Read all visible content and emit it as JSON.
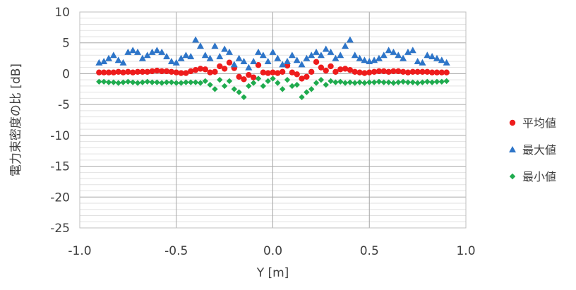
{
  "chart_data": {
    "type": "scatter",
    "xlabel": "Y [m]",
    "ylabel": "電力束密度の比 [dB]",
    "xlim": [
      -1.0,
      1.0
    ],
    "ylim": [
      -25,
      10
    ],
    "x_ticks": [
      "-1.0",
      "-0.5",
      "0.0",
      "0.5",
      "1.0"
    ],
    "y_ticks": [
      "10",
      "5",
      "0",
      "-5",
      "-10",
      "-15",
      "-20",
      "-25"
    ],
    "x_major": 0.5,
    "y_major": 5,
    "y_minor": 1,
    "legend_position": "right",
    "x": [
      -0.9,
      -0.875,
      -0.85,
      -0.825,
      -0.8,
      -0.775,
      -0.75,
      -0.725,
      -0.7,
      -0.675,
      -0.65,
      -0.625,
      -0.6,
      -0.575,
      -0.55,
      -0.525,
      -0.5,
      -0.475,
      -0.45,
      -0.425,
      -0.4,
      -0.375,
      -0.35,
      -0.325,
      -0.3,
      -0.275,
      -0.25,
      -0.225,
      -0.2,
      -0.175,
      -0.15,
      -0.125,
      -0.1,
      -0.075,
      -0.05,
      -0.025,
      0.0,
      0.025,
      0.05,
      0.075,
      0.1,
      0.125,
      0.15,
      0.175,
      0.2,
      0.225,
      0.25,
      0.275,
      0.3,
      0.325,
      0.35,
      0.375,
      0.4,
      0.425,
      0.45,
      0.475,
      0.5,
      0.525,
      0.55,
      0.575,
      0.6,
      0.625,
      0.65,
      0.675,
      0.7,
      0.725,
      0.75,
      0.775,
      0.8,
      0.825,
      0.85,
      0.875,
      0.9
    ],
    "series": [
      {
        "name": "平均値",
        "color": "#ee1c1c",
        "marker": "circle",
        "values": [
          0.2,
          0.2,
          0.2,
          0.2,
          0.3,
          0.2,
          0.3,
          0.2,
          0.3,
          0.3,
          0.3,
          0.4,
          0.5,
          0.4,
          0.4,
          0.3,
          0.2,
          0.1,
          0.1,
          0.4,
          0.6,
          0.8,
          0.7,
          0.2,
          0.3,
          1.2,
          0.8,
          1.8,
          0.9,
          -0.5,
          -0.9,
          -0.2,
          -0.6,
          1.4,
          0.2,
          0.1,
          0.2,
          0.1,
          0.3,
          1.3,
          0.2,
          -0.1,
          -0.8,
          -0.5,
          0.3,
          1.9,
          1.0,
          0.5,
          1.2,
          0.3,
          0.7,
          0.8,
          0.6,
          0.3,
          0.2,
          0.1,
          0.2,
          0.3,
          0.4,
          0.4,
          0.3,
          0.4,
          0.4,
          0.3,
          0.2,
          0.3,
          0.3,
          0.3,
          0.3,
          0.2,
          0.2,
          0.2,
          0.2
        ]
      },
      {
        "name": "最大値",
        "color": "#2e75c8",
        "marker": "triangle",
        "values": [
          1.8,
          2.0,
          2.5,
          3.0,
          2.2,
          1.8,
          3.5,
          3.8,
          3.5,
          2.5,
          3.0,
          3.5,
          3.8,
          3.5,
          2.8,
          2.0,
          1.8,
          2.5,
          3.0,
          2.8,
          5.5,
          4.5,
          3.0,
          2.5,
          4.5,
          2.8,
          4.0,
          3.5,
          1.5,
          2.5,
          2.0,
          1.0,
          2.0,
          3.5,
          3.0,
          2.0,
          3.5,
          2.5,
          1.5,
          2.0,
          3.0,
          2.2,
          1.5,
          2.5,
          3.0,
          3.5,
          3.0,
          4.0,
          3.5,
          2.5,
          3.0,
          4.5,
          5.5,
          3.0,
          2.5,
          2.2,
          2.0,
          2.2,
          2.5,
          3.0,
          3.8,
          3.5,
          3.0,
          2.5,
          3.5,
          3.8,
          2.0,
          1.8,
          3.0,
          2.8,
          2.5,
          2.2,
          1.8
        ]
      },
      {
        "name": "最小値",
        "color": "#1fab4e",
        "marker": "diamond",
        "values": [
          -1.3,
          -1.3,
          -1.4,
          -1.4,
          -1.5,
          -1.4,
          -1.3,
          -1.4,
          -1.5,
          -1.4,
          -1.3,
          -1.4,
          -1.4,
          -1.5,
          -1.4,
          -1.4,
          -1.5,
          -1.5,
          -1.4,
          -1.4,
          -1.4,
          -1.5,
          -1.2,
          -1.8,
          -2.5,
          -1.0,
          -2.0,
          -1.2,
          -2.5,
          -3.0,
          -3.8,
          -2.0,
          -1.5,
          -0.8,
          -2.0,
          -1.2,
          -0.8,
          -1.5,
          -2.5,
          -1.0,
          -2.0,
          -1.8,
          -3.8,
          -3.0,
          -2.5,
          -1.5,
          -1.0,
          -1.8,
          -1.2,
          -1.4,
          -1.3,
          -1.5,
          -1.4,
          -1.5,
          -1.4,
          -1.5,
          -1.4,
          -1.4,
          -1.3,
          -1.4,
          -1.4,
          -1.5,
          -1.4,
          -1.3,
          -1.4,
          -1.4,
          -1.5,
          -1.4,
          -1.3,
          -1.4,
          -1.3,
          -1.3,
          -1.2
        ]
      }
    ]
  }
}
